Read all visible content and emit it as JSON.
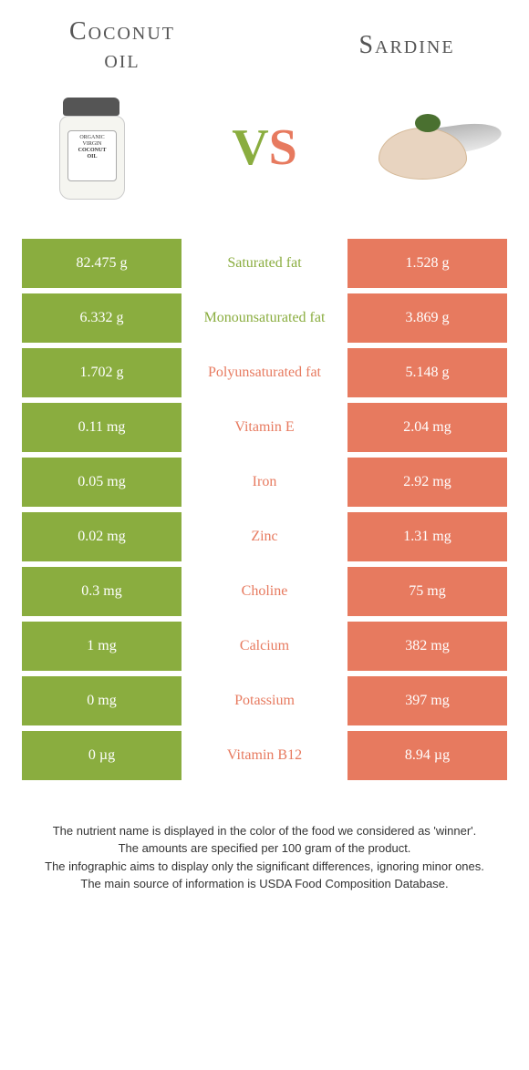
{
  "colors": {
    "left": "#8aad3f",
    "right": "#e77a5f",
    "text_dark": "#555555"
  },
  "left_title_l1": "Coconut",
  "left_title_l2": "oil",
  "right_title": "Sardine",
  "vs_v": "V",
  "vs_s": "S",
  "jar_label_l1": "ORGANIC",
  "jar_label_l2": "VIRGIN",
  "jar_label_l3": "COCONUT",
  "jar_label_l4": "OIL",
  "rows": [
    {
      "left": "82.475 g",
      "mid": "Saturated fat",
      "right": "1.528 g",
      "winner": "left"
    },
    {
      "left": "6.332 g",
      "mid": "Monounsaturated fat",
      "right": "3.869 g",
      "winner": "left"
    },
    {
      "left": "1.702 g",
      "mid": "Polyunsaturated fat",
      "right": "5.148 g",
      "winner": "right"
    },
    {
      "left": "0.11 mg",
      "mid": "Vitamin E",
      "right": "2.04 mg",
      "winner": "right"
    },
    {
      "left": "0.05 mg",
      "mid": "Iron",
      "right": "2.92 mg",
      "winner": "right"
    },
    {
      "left": "0.02 mg",
      "mid": "Zinc",
      "right": "1.31 mg",
      "winner": "right"
    },
    {
      "left": "0.3 mg",
      "mid": "Choline",
      "right": "75 mg",
      "winner": "right"
    },
    {
      "left": "1 mg",
      "mid": "Calcium",
      "right": "382 mg",
      "winner": "right"
    },
    {
      "left": "0 mg",
      "mid": "Potassium",
      "right": "397 mg",
      "winner": "right"
    },
    {
      "left": "0 µg",
      "mid": "Vitamin B12",
      "right": "8.94 µg",
      "winner": "right"
    }
  ],
  "footer_lines": [
    "The nutrient name is displayed in the color of the food we considered as 'winner'.",
    "The amounts are specified per 100 gram of the product.",
    "The infographic aims to display only the significant differences, ignoring minor ones.",
    "The main source of information is USDA Food Composition Database."
  ]
}
